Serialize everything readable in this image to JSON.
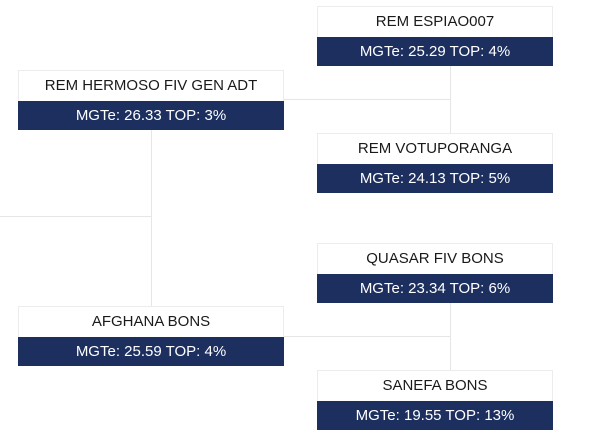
{
  "colors": {
    "stats_bg": "#1c2f5e",
    "line": "#e6e6e6"
  },
  "tree": {
    "root_sire": {
      "name": "REM HERMOSO FIV GEN ADT",
      "stats": "MGTe: 26.33 TOP: 3%"
    },
    "root_dam": {
      "name": "AFGHANA BONS",
      "stats": "MGTe: 25.59 TOP: 4%"
    },
    "sire_sire": {
      "name": "REM ESPIAO007",
      "stats": "MGTe: 25.29 TOP: 4%"
    },
    "sire_dam": {
      "name": "REM VOTUPORANGA",
      "stats": "MGTe: 24.13 TOP: 5%"
    },
    "dam_sire": {
      "name": "QUASAR FIV BONS",
      "stats": "MGTe: 23.34 TOP: 6%"
    },
    "dam_dam": {
      "name": "SANEFA BONS",
      "stats": "MGTe: 19.55 TOP: 13%"
    }
  }
}
